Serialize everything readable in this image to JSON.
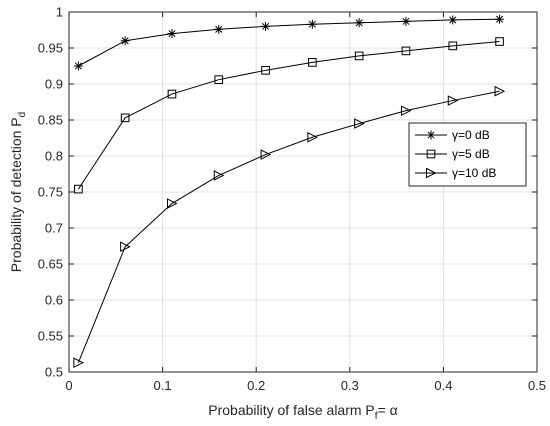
{
  "chart_data": {
    "type": "line",
    "xlabel": {
      "main": "Probability of false alarm P",
      "sub": "f",
      "tail": "= α"
    },
    "ylabel": {
      "main": "Probability of detection P",
      "sub": "d"
    },
    "xlim": [
      0,
      0.5
    ],
    "ylim": [
      0.5,
      1
    ],
    "xticks": [
      {
        "value": 0,
        "label": "0"
      },
      {
        "value": 0.1,
        "label": "0.1"
      },
      {
        "value": 0.2,
        "label": "0.2"
      },
      {
        "value": 0.3,
        "label": "0.3"
      },
      {
        "value": 0.4,
        "label": "0.4"
      },
      {
        "value": 0.5,
        "label": "0.5"
      }
    ],
    "yticks": [
      {
        "value": 0.5,
        "label": "0.5"
      },
      {
        "value": 0.55,
        "label": "0.55"
      },
      {
        "value": 0.6,
        "label": "0.6"
      },
      {
        "value": 0.65,
        "label": "0.65"
      },
      {
        "value": 0.7,
        "label": "0.7"
      },
      {
        "value": 0.75,
        "label": "0.75"
      },
      {
        "value": 0.8,
        "label": "0.8"
      },
      {
        "value": 0.85,
        "label": "0.85"
      },
      {
        "value": 0.9,
        "label": "0.9"
      },
      {
        "value": 0.95,
        "label": "0.95"
      },
      {
        "value": 1,
        "label": "1"
      }
    ],
    "grid": true,
    "legend_position": "right",
    "x": [
      0.01,
      0.06,
      0.11,
      0.16,
      0.21,
      0.26,
      0.31,
      0.36,
      0.41,
      0.46
    ],
    "series": [
      {
        "name": "γ=0 dB",
        "marker": "asterisk",
        "color": "#000000",
        "values": [
          0.925,
          0.96,
          0.97,
          0.976,
          0.98,
          0.983,
          0.985,
          0.987,
          0.989,
          0.99
        ]
      },
      {
        "name": "γ=5 dB",
        "marker": "square",
        "color": "#000000",
        "values": [
          0.754,
          0.853,
          0.886,
          0.906,
          0.919,
          0.93,
          0.939,
          0.946,
          0.953,
          0.959
        ]
      },
      {
        "name": "γ=10 dB",
        "marker": "triangle-right",
        "color": "#000000",
        "values": [
          0.513,
          0.674,
          0.734,
          0.773,
          0.802,
          0.826,
          0.845,
          0.863,
          0.877,
          0.89
        ]
      }
    ]
  }
}
